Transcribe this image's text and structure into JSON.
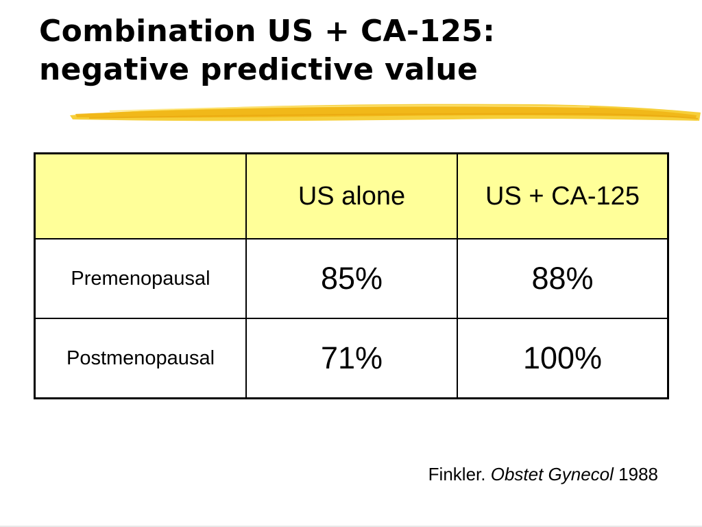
{
  "slide": {
    "title_line1": "Combination US + CA-125:",
    "title_line2": "negative predictive value"
  },
  "table": {
    "header": [
      "",
      "US alone",
      "US + CA-125"
    ],
    "rows": [
      {
        "label": "Premenopausal",
        "us_alone": "85%",
        "us_ca125": "88%"
      },
      {
        "label": "Postmenopausal",
        "us_alone": "71%",
        "us_ca125": "100%"
      }
    ]
  },
  "citation": {
    "author": "Finkler.",
    "journal": "Obstet Gynecol",
    "year": "1988"
  },
  "colors": {
    "header_fill": "#ffff99",
    "highlighter": "#f2c21a"
  }
}
